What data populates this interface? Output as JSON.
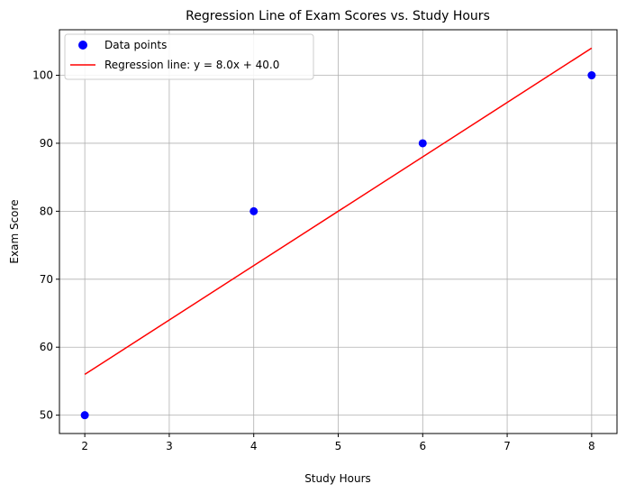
{
  "chart_data": {
    "type": "scatter",
    "title": "Regression Line of Exam Scores vs. Study Hours",
    "xlabel": "Study Hours",
    "ylabel": "Exam Score",
    "xlim": [
      1.7,
      8.3
    ],
    "ylim": [
      47.3,
      106.7
    ],
    "xticks": [
      2,
      3,
      4,
      5,
      6,
      7,
      8
    ],
    "yticks": [
      50,
      60,
      70,
      80,
      90,
      100
    ],
    "grid": true,
    "legend_position": "top-left",
    "series": [
      {
        "name": "Data points",
        "kind": "scatter",
        "color": "#0000ff",
        "x": [
          2,
          4,
          6,
          8
        ],
        "y": [
          50,
          80,
          90,
          100
        ]
      },
      {
        "name": "Regression line: y = 8.0x + 40.0",
        "kind": "line",
        "color": "#ff0000",
        "x": [
          2,
          8
        ],
        "y": [
          56,
          104
        ]
      }
    ]
  }
}
